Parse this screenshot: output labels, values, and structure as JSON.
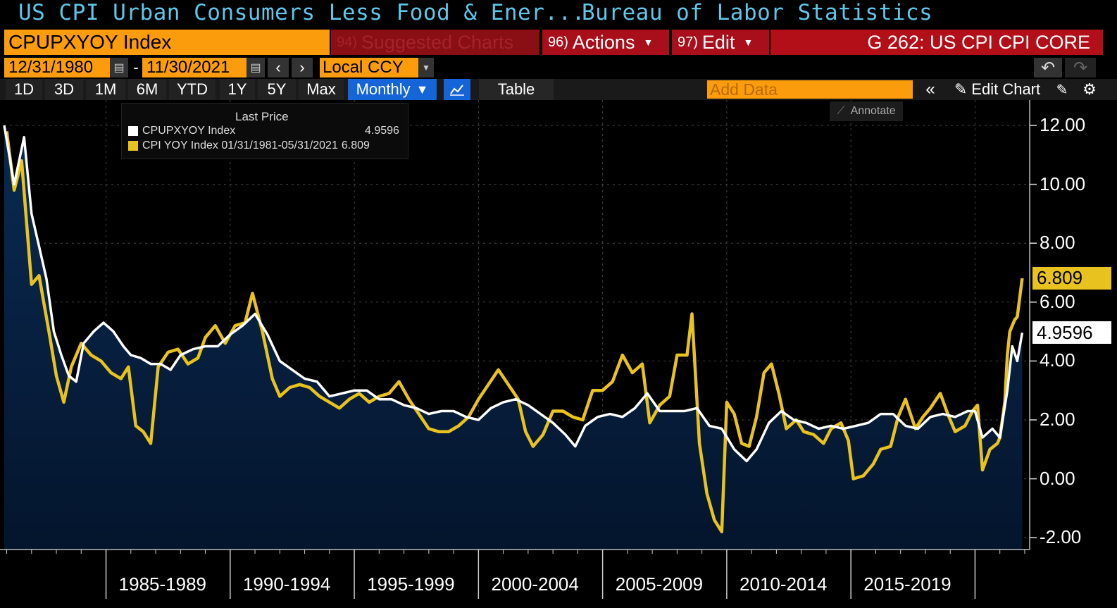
{
  "header": {
    "title": "US CPI Urban Consumers Less Food & Ener...",
    "source": "Bureau of Labor Statistics"
  },
  "toolbar": {
    "ticker": "CPUPXYOY Index",
    "suggested_num": "94)",
    "suggested_label": "Suggested Charts",
    "actions_num": "96)",
    "actions_label": "Actions",
    "edit_num": "97)",
    "edit_label": "Edit",
    "chart_name": "G 262: US CPI CPI CORE",
    "date_start": "12/31/1980",
    "date_end": "11/30/2021",
    "currency": "Local CCY",
    "ranges": [
      "1D",
      "3D",
      "1M",
      "6M",
      "YTD",
      "1Y",
      "5Y",
      "Max"
    ],
    "period": "Monthly",
    "table_label": "Table",
    "add_data_placeholder": "Add Data",
    "edit_chart_label": "Edit Chart",
    "annotate_label": "Annotate"
  },
  "legend": {
    "title": "Last Price",
    "items": [
      {
        "name": "CPUPXYOY Index",
        "value": "4.9596"
      },
      {
        "name": "CPI YOY Index 01/31/1981-05/31/2021",
        "value": "6.809"
      }
    ]
  },
  "colors": {
    "core_line": "#ffffff",
    "cpi_line": "#e8c21e",
    "area_top": "#0a2a52",
    "area_bottom": "#04152d",
    "grid": "#555555",
    "accent_orange": "#fb9c0c"
  },
  "chart_data": {
    "type": "line",
    "title": "US CPI Urban Consumers Less Food & Ener...",
    "ylim": [
      -2.4,
      12.8
    ],
    "y_ticks": [
      "12.00",
      "10.00",
      "8.00",
      "6.00",
      "4.00",
      "2.00",
      "0.00",
      "-2.00"
    ],
    "y_tick_values": [
      12,
      10,
      8,
      6,
      4,
      2,
      0,
      -2
    ],
    "x_tick_labels": [
      "1985-1989",
      "1990-1994",
      "1995-1999",
      "2000-2004",
      "2005-2009",
      "2010-2014",
      "2015-2019"
    ],
    "x_range": [
      1980.9,
      2022.2
    ],
    "grid": true,
    "legend_position": "top-left",
    "series": [
      {
        "name": "CPUPXYOY Index",
        "last_value_label": "4.9596",
        "points": [
          [
            1980.9,
            12.0
          ],
          [
            1981.3,
            10.0
          ],
          [
            1981.7,
            11.6
          ],
          [
            1982.0,
            9.0
          ],
          [
            1982.3,
            7.9
          ],
          [
            1982.6,
            6.8
          ],
          [
            1982.9,
            5.0
          ],
          [
            1983.2,
            4.2
          ],
          [
            1983.5,
            3.5
          ],
          [
            1983.8,
            3.3
          ],
          [
            1984.1,
            4.6
          ],
          [
            1984.5,
            5.0
          ],
          [
            1984.9,
            5.3
          ],
          [
            1985.3,
            5.0
          ],
          [
            1985.7,
            4.5
          ],
          [
            1986.0,
            4.2
          ],
          [
            1986.4,
            4.1
          ],
          [
            1986.8,
            3.9
          ],
          [
            1987.2,
            3.9
          ],
          [
            1987.6,
            3.7
          ],
          [
            1988.0,
            4.2
          ],
          [
            1988.5,
            4.4
          ],
          [
            1989.0,
            4.5
          ],
          [
            1989.5,
            4.5
          ],
          [
            1990.0,
            4.9
          ],
          [
            1990.5,
            5.2
          ],
          [
            1991.0,
            5.6
          ],
          [
            1991.5,
            4.9
          ],
          [
            1992.0,
            4.0
          ],
          [
            1992.5,
            3.7
          ],
          [
            1993.0,
            3.4
          ],
          [
            1993.5,
            3.3
          ],
          [
            1994.0,
            2.8
          ],
          [
            1994.5,
            2.9
          ],
          [
            1995.0,
            3.0
          ],
          [
            1995.5,
            3.0
          ],
          [
            1996.0,
            2.7
          ],
          [
            1996.5,
            2.7
          ],
          [
            1997.0,
            2.5
          ],
          [
            1997.5,
            2.4
          ],
          [
            1998.0,
            2.2
          ],
          [
            1998.5,
            2.3
          ],
          [
            1999.0,
            2.3
          ],
          [
            1999.5,
            2.1
          ],
          [
            2000.0,
            2.0
          ],
          [
            2000.5,
            2.4
          ],
          [
            2001.0,
            2.6
          ],
          [
            2001.5,
            2.7
          ],
          [
            2002.0,
            2.5
          ],
          [
            2002.5,
            2.2
          ],
          [
            2003.0,
            1.9
          ],
          [
            2003.5,
            1.5
          ],
          [
            2003.9,
            1.1
          ],
          [
            2004.3,
            1.8
          ],
          [
            2004.8,
            2.1
          ],
          [
            2005.3,
            2.2
          ],
          [
            2005.8,
            2.1
          ],
          [
            2006.3,
            2.4
          ],
          [
            2006.8,
            2.9
          ],
          [
            2007.3,
            2.3
          ],
          [
            2007.8,
            2.3
          ],
          [
            2008.3,
            2.3
          ],
          [
            2008.8,
            2.4
          ],
          [
            2009.3,
            1.8
          ],
          [
            2009.8,
            1.7
          ],
          [
            2010.3,
            1.0
          ],
          [
            2010.8,
            0.6
          ],
          [
            2011.2,
            1.0
          ],
          [
            2011.7,
            1.9
          ],
          [
            2012.2,
            2.3
          ],
          [
            2012.7,
            2.0
          ],
          [
            2013.2,
            1.9
          ],
          [
            2013.7,
            1.7
          ],
          [
            2014.2,
            1.8
          ],
          [
            2014.7,
            1.7
          ],
          [
            2015.2,
            1.8
          ],
          [
            2015.7,
            1.9
          ],
          [
            2016.2,
            2.2
          ],
          [
            2016.7,
            2.2
          ],
          [
            2017.2,
            1.8
          ],
          [
            2017.7,
            1.7
          ],
          [
            2018.2,
            2.1
          ],
          [
            2018.7,
            2.2
          ],
          [
            2019.2,
            2.1
          ],
          [
            2019.7,
            2.3
          ],
          [
            2020.0,
            2.3
          ],
          [
            2020.3,
            1.4
          ],
          [
            2020.7,
            1.7
          ],
          [
            2021.0,
            1.4
          ],
          [
            2021.3,
            3.0
          ],
          [
            2021.5,
            4.5
          ],
          [
            2021.7,
            4.0
          ],
          [
            2021.9,
            4.9596
          ]
        ]
      },
      {
        "name": "CPI YOY Index 01/31/1981-05/31/2021",
        "last_value_label": "6.809",
        "points": [
          [
            1981.0,
            11.8
          ],
          [
            1981.3,
            9.8
          ],
          [
            1981.6,
            10.8
          ],
          [
            1982.0,
            6.6
          ],
          [
            1982.3,
            6.9
          ],
          [
            1982.7,
            5.0
          ],
          [
            1983.0,
            3.5
          ],
          [
            1983.3,
            2.6
          ],
          [
            1983.6,
            3.8
          ],
          [
            1984.0,
            4.6
          ],
          [
            1984.4,
            4.2
          ],
          [
            1984.8,
            4.0
          ],
          [
            1985.2,
            3.6
          ],
          [
            1985.6,
            3.4
          ],
          [
            1985.9,
            3.8
          ],
          [
            1986.2,
            1.8
          ],
          [
            1986.5,
            1.6
          ],
          [
            1986.8,
            1.2
          ],
          [
            1987.1,
            3.8
          ],
          [
            1987.5,
            4.3
          ],
          [
            1987.9,
            4.4
          ],
          [
            1988.3,
            3.9
          ],
          [
            1988.7,
            4.1
          ],
          [
            1989.0,
            4.8
          ],
          [
            1989.4,
            5.2
          ],
          [
            1989.8,
            4.6
          ],
          [
            1990.2,
            5.2
          ],
          [
            1990.6,
            5.3
          ],
          [
            1990.9,
            6.3
          ],
          [
            1991.3,
            5.0
          ],
          [
            1991.7,
            3.4
          ],
          [
            1992.0,
            2.8
          ],
          [
            1992.4,
            3.1
          ],
          [
            1992.8,
            3.2
          ],
          [
            1993.2,
            3.1
          ],
          [
            1993.6,
            2.8
          ],
          [
            1994.0,
            2.6
          ],
          [
            1994.4,
            2.4
          ],
          [
            1994.8,
            2.7
          ],
          [
            1995.2,
            2.9
          ],
          [
            1995.6,
            2.6
          ],
          [
            1996.0,
            2.8
          ],
          [
            1996.4,
            2.9
          ],
          [
            1996.8,
            3.3
          ],
          [
            1997.2,
            2.7
          ],
          [
            1997.6,
            2.2
          ],
          [
            1998.0,
            1.7
          ],
          [
            1998.4,
            1.6
          ],
          [
            1998.8,
            1.6
          ],
          [
            1999.2,
            1.8
          ],
          [
            1999.6,
            2.1
          ],
          [
            2000.0,
            2.7
          ],
          [
            2000.4,
            3.2
          ],
          [
            2000.8,
            3.7
          ],
          [
            2001.2,
            3.2
          ],
          [
            2001.6,
            2.7
          ],
          [
            2001.9,
            1.6
          ],
          [
            2002.2,
            1.1
          ],
          [
            2002.6,
            1.5
          ],
          [
            2003.0,
            2.3
          ],
          [
            2003.4,
            2.3
          ],
          [
            2003.8,
            2.1
          ],
          [
            2004.2,
            2.0
          ],
          [
            2004.6,
            3.0
          ],
          [
            2005.0,
            3.0
          ],
          [
            2005.4,
            3.3
          ],
          [
            2005.8,
            4.2
          ],
          [
            2006.2,
            3.6
          ],
          [
            2006.6,
            3.9
          ],
          [
            2006.9,
            1.9
          ],
          [
            2007.3,
            2.5
          ],
          [
            2007.7,
            2.8
          ],
          [
            2008.0,
            4.2
          ],
          [
            2008.4,
            4.2
          ],
          [
            2008.6,
            5.6
          ],
          [
            2008.9,
            1.2
          ],
          [
            2009.2,
            -0.5
          ],
          [
            2009.5,
            -1.4
          ],
          [
            2009.8,
            -1.8
          ],
          [
            2010.0,
            2.6
          ],
          [
            2010.3,
            2.2
          ],
          [
            2010.6,
            1.2
          ],
          [
            2010.9,
            1.1
          ],
          [
            2011.2,
            2.1
          ],
          [
            2011.5,
            3.6
          ],
          [
            2011.8,
            3.9
          ],
          [
            2012.1,
            2.9
          ],
          [
            2012.4,
            1.7
          ],
          [
            2012.8,
            2.0
          ],
          [
            2013.1,
            1.6
          ],
          [
            2013.5,
            1.5
          ],
          [
            2013.9,
            1.2
          ],
          [
            2014.2,
            1.7
          ],
          [
            2014.6,
            1.9
          ],
          [
            2014.9,
            1.3
          ],
          [
            2015.1,
            0.0
          ],
          [
            2015.5,
            0.1
          ],
          [
            2015.9,
            0.5
          ],
          [
            2016.2,
            1.0
          ],
          [
            2016.6,
            1.1
          ],
          [
            2016.9,
            2.1
          ],
          [
            2017.2,
            2.7
          ],
          [
            2017.6,
            1.7
          ],
          [
            2017.9,
            2.1
          ],
          [
            2018.2,
            2.4
          ],
          [
            2018.6,
            2.9
          ],
          [
            2018.9,
            2.2
          ],
          [
            2019.2,
            1.6
          ],
          [
            2019.6,
            1.8
          ],
          [
            2019.9,
            2.3
          ],
          [
            2020.1,
            2.5
          ],
          [
            2020.3,
            0.3
          ],
          [
            2020.6,
            1.0
          ],
          [
            2020.9,
            1.2
          ],
          [
            2021.0,
            1.4
          ],
          [
            2021.2,
            2.6
          ],
          [
            2021.3,
            4.2
          ],
          [
            2021.4,
            5.0
          ],
          [
            2021.6,
            5.4
          ],
          [
            2021.7,
            5.5
          ],
          [
            2021.9,
            6.809
          ]
        ]
      }
    ]
  }
}
